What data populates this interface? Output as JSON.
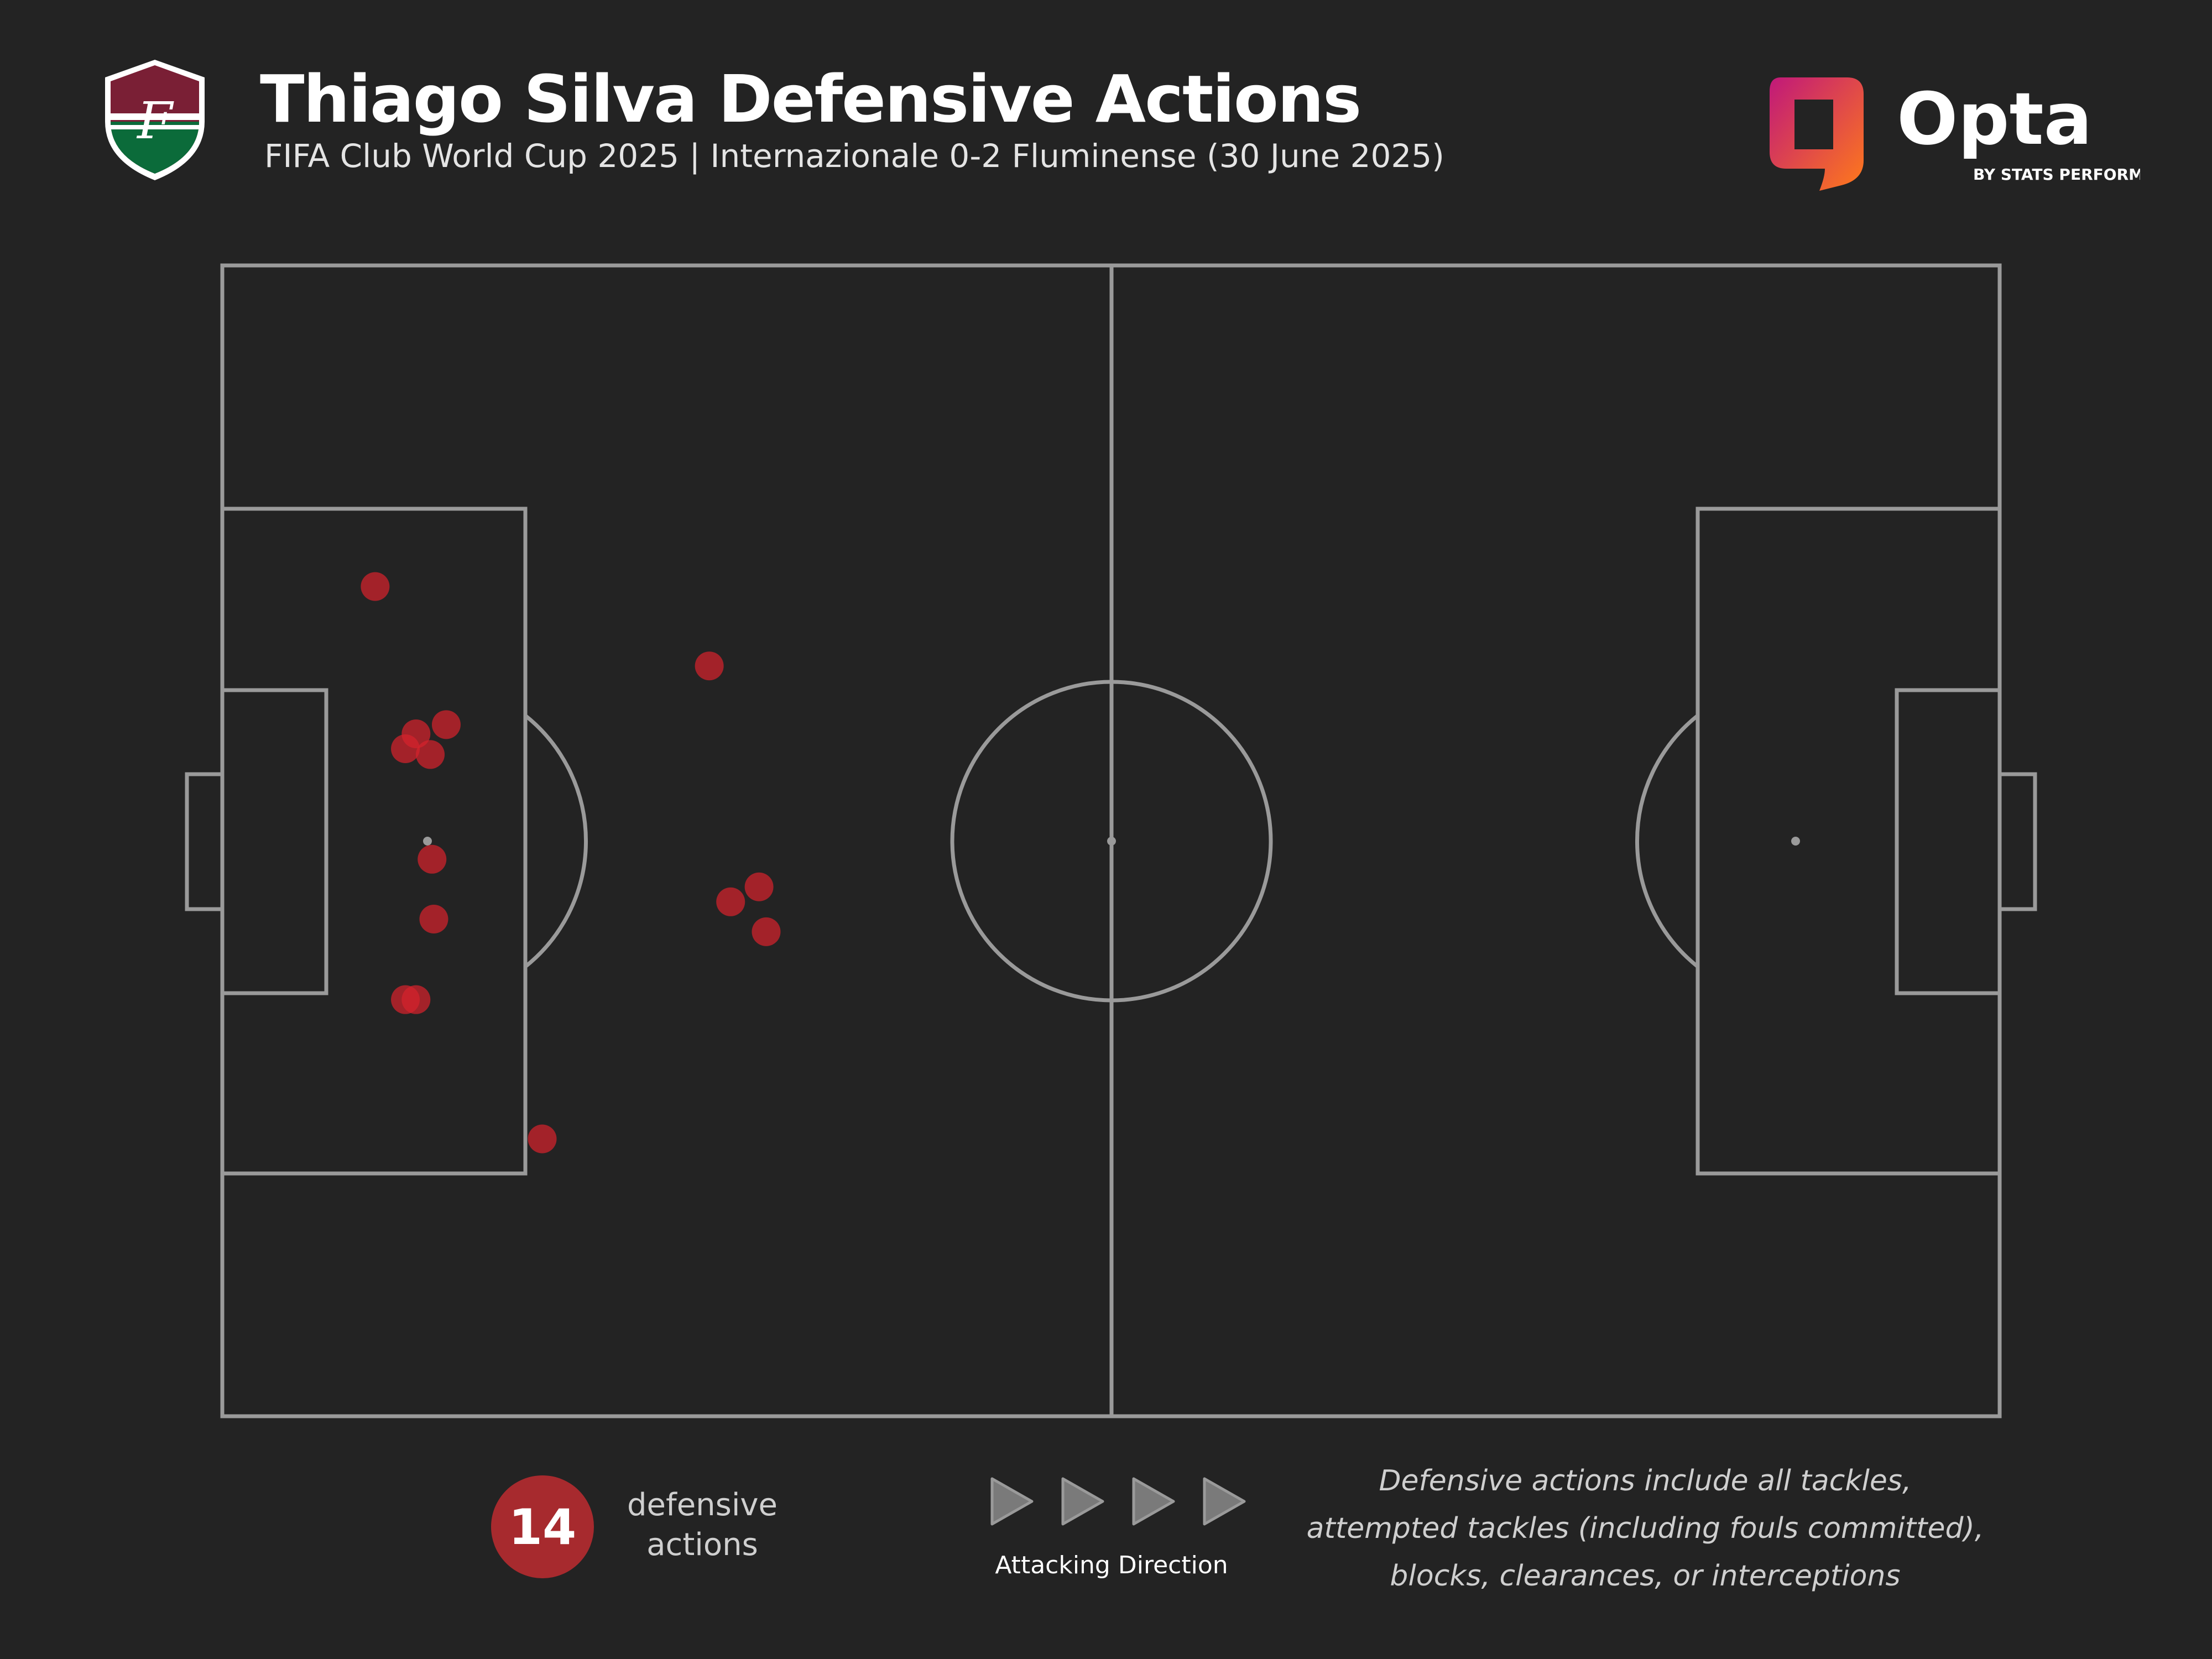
{
  "header": {
    "title": "Thiago Silva Defensive Actions",
    "subtitle": "FIFA Club World Cup 2025 | Internazionale 0-2 Fluminense (30 June 2025)"
  },
  "crest": {
    "icon": "fluminense-crest-icon",
    "colors": [
      "#7a1f35",
      "#ffffff",
      "#0b6b3a"
    ]
  },
  "brand": {
    "name": "Opta",
    "tagline": "BY STATS PERFORM",
    "colors": [
      "#c0187a",
      "#ff7a1a"
    ]
  },
  "chart_data": {
    "type": "scatter",
    "pitch": "full",
    "units": "pitch coordinates 0-100 (x along length, y across width)",
    "series": [
      {
        "marker_color": "#d6232d",
        "points": [
          {
            "x": 8.6,
            "y": 72.1
          },
          {
            "x": 27.4,
            "y": 65.2
          },
          {
            "x": 12.6,
            "y": 60.1
          },
          {
            "x": 10.9,
            "y": 59.3
          },
          {
            "x": 10.3,
            "y": 58.0
          },
          {
            "x": 11.7,
            "y": 57.5
          },
          {
            "x": 11.8,
            "y": 48.4
          },
          {
            "x": 30.2,
            "y": 46.0
          },
          {
            "x": 28.6,
            "y": 44.7
          },
          {
            "x": 30.6,
            "y": 42.1
          },
          {
            "x": 11.9,
            "y": 43.2
          },
          {
            "x": 10.3,
            "y": 36.2
          },
          {
            "x": 10.9,
            "y": 36.2
          },
          {
            "x": 18.0,
            "y": 24.1
          }
        ]
      }
    ],
    "pitch_colors": {
      "background": "#232323",
      "lines": "#9a9a9a"
    }
  },
  "legend": {
    "count": "14",
    "count_label_line1": "defensive",
    "count_label_line2": "actions",
    "direction_label": "Attacking Direction",
    "direction_icon": "play-arrow-icon",
    "note_line1": "Defensive actions include all tackles,",
    "note_line2": "attempted tackles (including fouls committed),",
    "note_line3": "blocks, clearances, or interceptions"
  }
}
